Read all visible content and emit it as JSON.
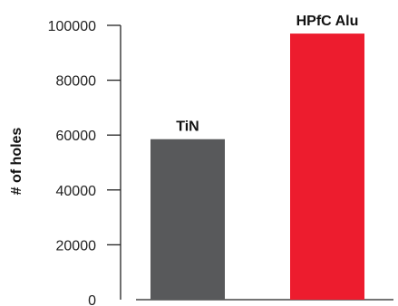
{
  "chart_data": {
    "type": "bar",
    "categories": [
      "TiN",
      "HPfC Alu"
    ],
    "values": [
      58500,
      97000
    ],
    "ylabel": "# of holes",
    "ylim": [
      0,
      100000
    ],
    "yticks": [
      0,
      20000,
      40000,
      60000,
      80000,
      100000
    ],
    "grid": false,
    "colors": [
      "#58595b",
      "#ed1c2e"
    ]
  }
}
